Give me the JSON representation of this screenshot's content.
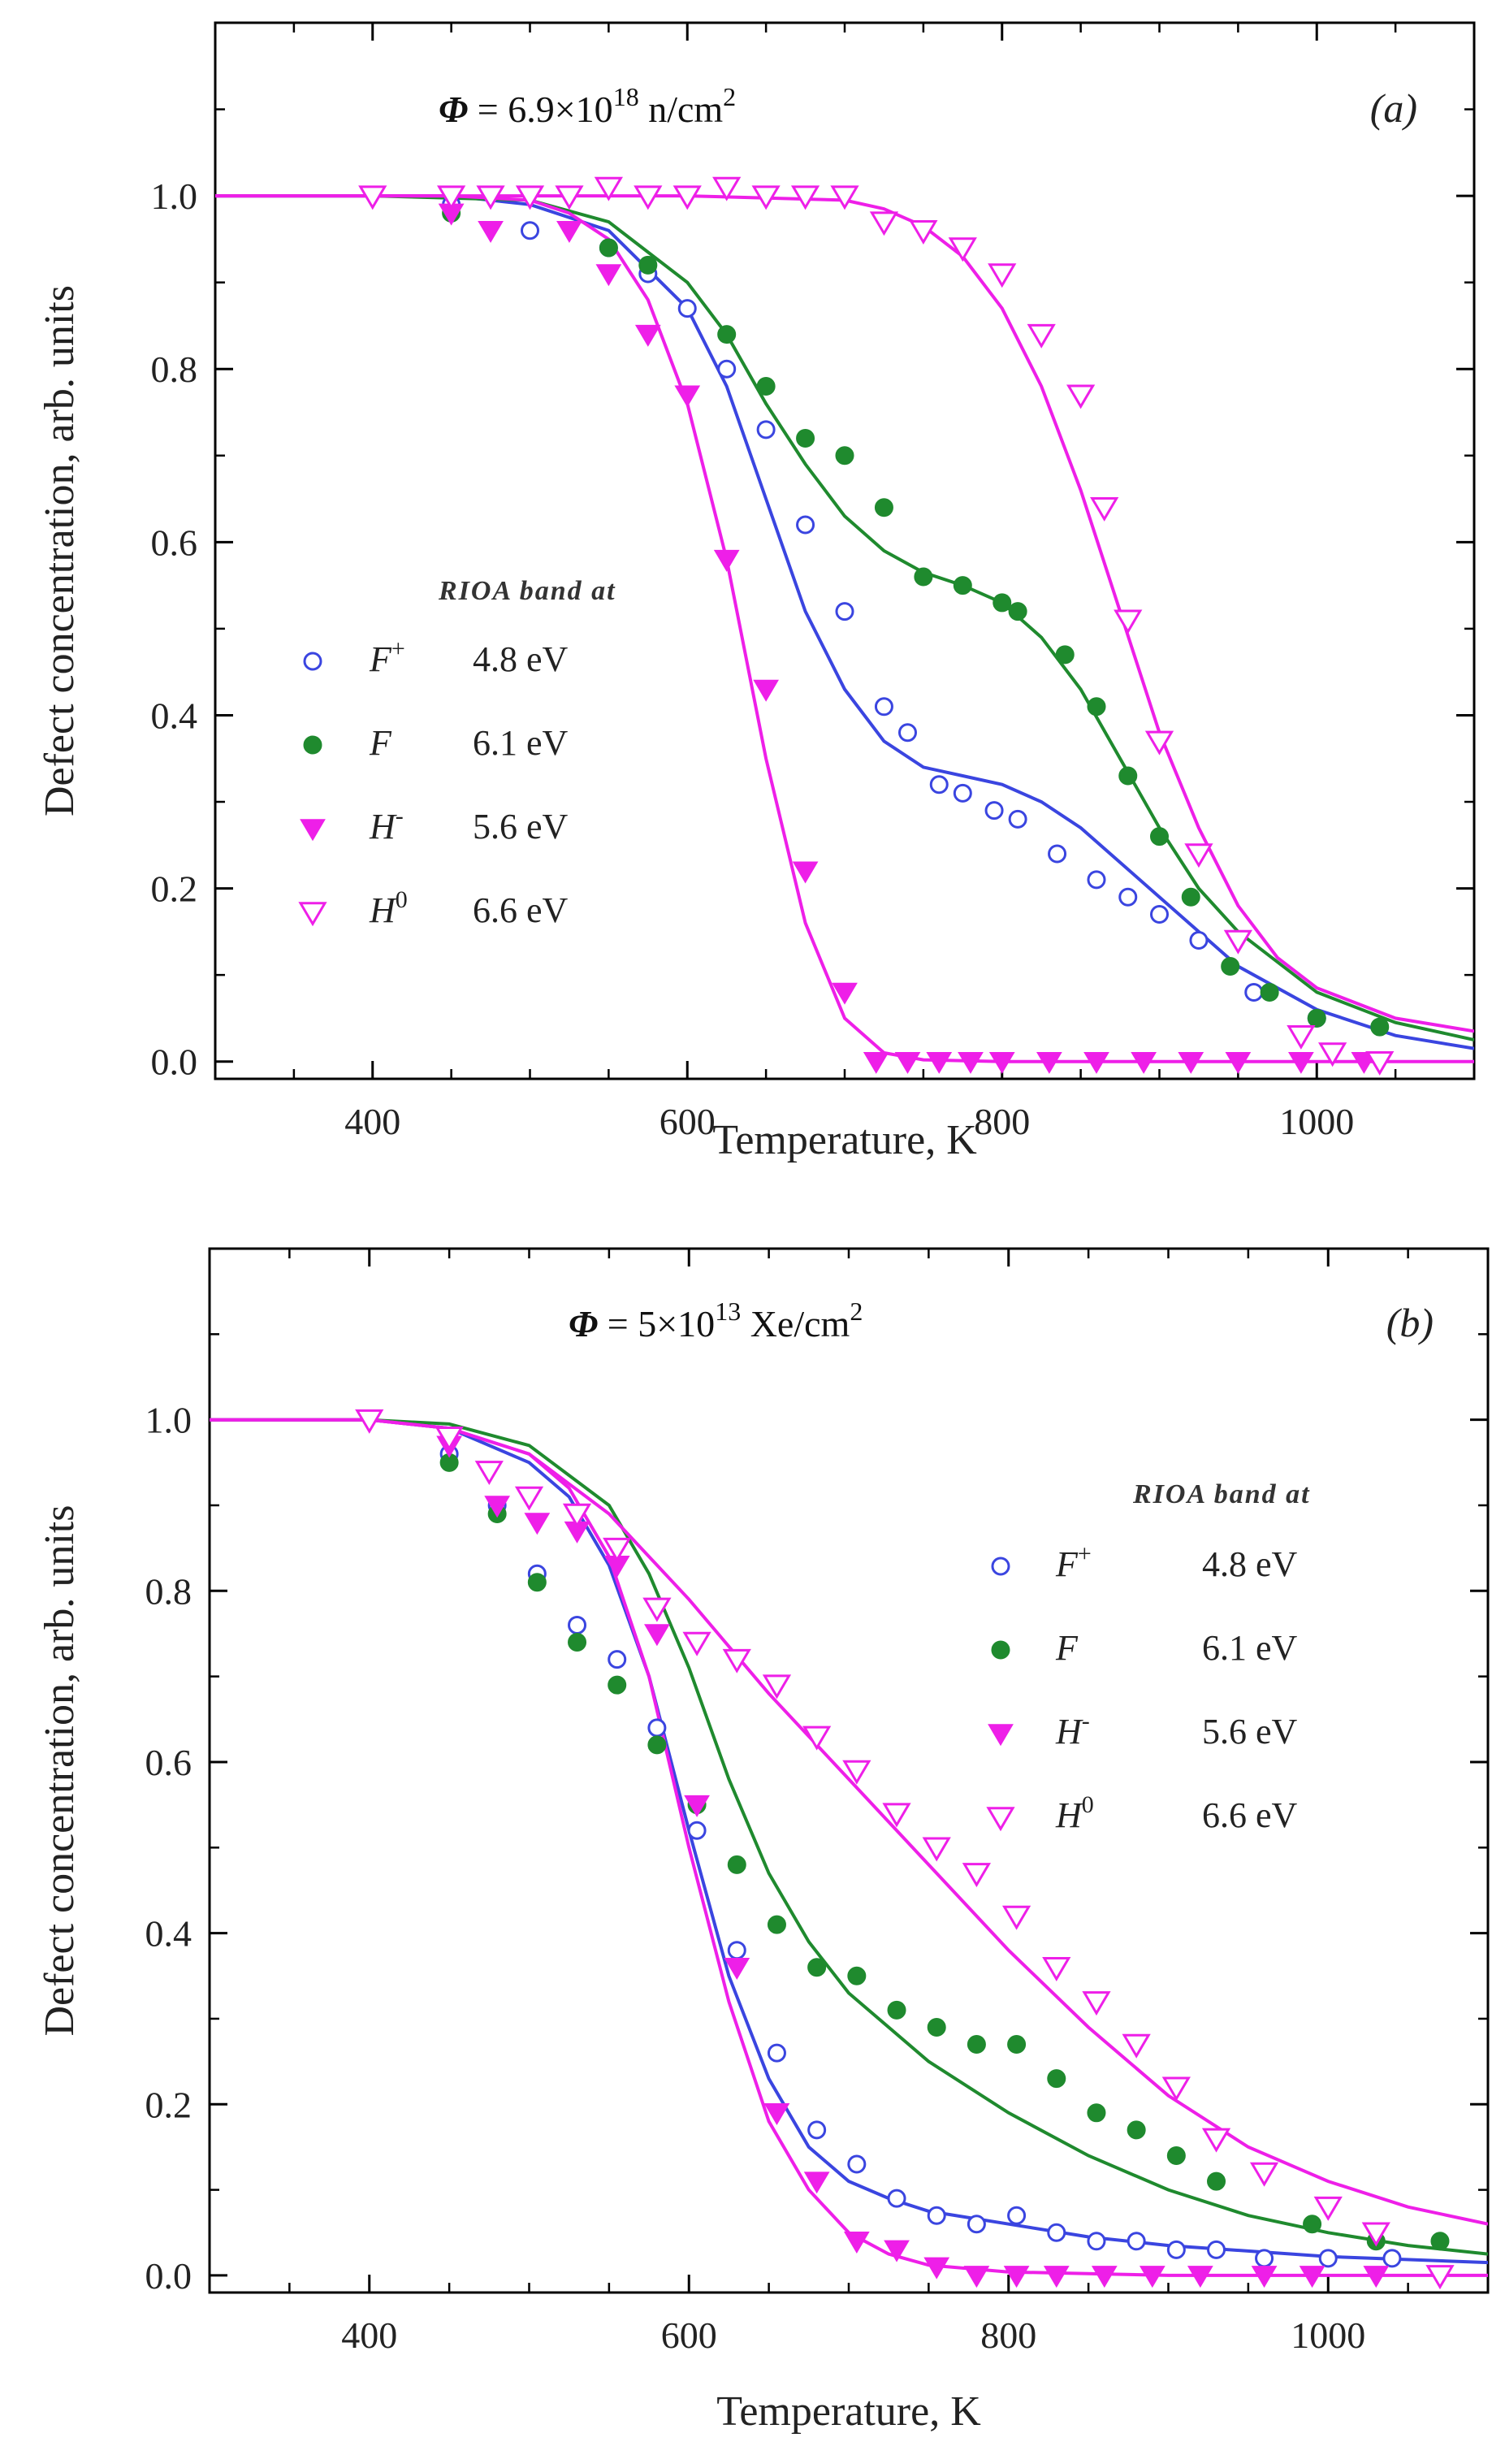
{
  "chart_data": [
    {
      "type": "scatter",
      "panel_label": "(a)",
      "annotation": {
        "symbol": "Φ",
        "text": " = 6.9×10",
        "exp": "18",
        "unit": " n/cm",
        "unit_exp": "2"
      },
      "xlabel": "Temperature, K",
      "ylabel": "Defect concentration, arb. units",
      "xlim": [
        300,
        1100
      ],
      "ylim": [
        -0.02,
        1.2
      ],
      "xticks": [
        400,
        600,
        800,
        1000
      ],
      "xtick_labels": [
        "400",
        "600",
        "800",
        "1000"
      ],
      "yticks": [
        0.0,
        0.2,
        0.4,
        0.6,
        0.8,
        1.0
      ],
      "ytick_labels": [
        "0.0",
        "0.2",
        "0.4",
        "0.6",
        "0.8",
        "1.0"
      ],
      "legend_title": "RIOA band at",
      "series": [
        {
          "name": "F+",
          "sym": "F",
          "sup": "+",
          "energy": "4.8 eV",
          "color": "#3a45e0",
          "marker": "open-circle",
          "x": [
            450,
            500,
            550,
            575,
            600,
            625,
            650,
            675,
            700,
            725,
            740,
            760,
            775,
            795,
            810,
            835,
            860,
            880,
            900,
            925,
            960,
            1000
          ],
          "y": [
            0.99,
            0.96,
            0.94,
            0.91,
            0.87,
            0.8,
            0.73,
            0.62,
            0.52,
            0.41,
            0.38,
            0.32,
            0.31,
            0.29,
            0.28,
            0.24,
            0.21,
            0.19,
            0.17,
            0.14,
            0.08,
            0.05
          ],
          "fit_x": [
            300,
            400,
            450,
            500,
            550,
            600,
            625,
            650,
            675,
            700,
            725,
            750,
            775,
            800,
            825,
            850,
            875,
            900,
            950,
            1000,
            1050,
            1100
          ],
          "fit_y": [
            1.0,
            1.0,
            1.0,
            0.99,
            0.96,
            0.87,
            0.78,
            0.65,
            0.52,
            0.43,
            0.37,
            0.34,
            0.33,
            0.32,
            0.3,
            0.27,
            0.23,
            0.19,
            0.11,
            0.06,
            0.03,
            0.015
          ]
        },
        {
          "name": "F",
          "sym": "F",
          "sup": "",
          "energy": "6.1 eV",
          "color": "#1f8a2e",
          "marker": "filled-circle",
          "x": [
            450,
            550,
            575,
            625,
            650,
            675,
            700,
            725,
            750,
            775,
            800,
            810,
            840,
            860,
            880,
            900,
            920,
            945,
            970,
            1000,
            1040
          ],
          "y": [
            0.98,
            0.94,
            0.92,
            0.84,
            0.78,
            0.72,
            0.7,
            0.64,
            0.56,
            0.55,
            0.53,
            0.52,
            0.47,
            0.41,
            0.33,
            0.26,
            0.19,
            0.11,
            0.08,
            0.05,
            0.04
          ],
          "fit_x": [
            300,
            400,
            500,
            550,
            600,
            625,
            650,
            675,
            700,
            725,
            750,
            775,
            800,
            825,
            850,
            875,
            900,
            925,
            950,
            1000,
            1050,
            1100
          ],
          "fit_y": [
            1.0,
            1.0,
            0.995,
            0.97,
            0.9,
            0.84,
            0.76,
            0.69,
            0.63,
            0.59,
            0.565,
            0.55,
            0.53,
            0.49,
            0.43,
            0.35,
            0.27,
            0.2,
            0.15,
            0.08,
            0.045,
            0.025
          ]
        },
        {
          "name": "H-",
          "sym": "H",
          "sup": "-",
          "energy": "5.6 eV",
          "color": "#ee1fe8",
          "marker": "filled-down-triangle",
          "x": [
            450,
            475,
            525,
            550,
            575,
            600,
            625,
            650,
            675,
            700,
            720,
            740,
            760,
            780,
            800,
            830,
            860,
            890,
            920,
            950,
            990,
            1030
          ],
          "y": [
            0.98,
            0.96,
            0.96,
            0.91,
            0.84,
            0.77,
            0.58,
            0.43,
            0.22,
            0.08,
            0.0,
            0.0,
            0.0,
            0.0,
            0.0,
            0.0,
            0.0,
            0.0,
            0.0,
            0.0,
            0.0,
            0.0
          ],
          "fit_x": [
            300,
            400,
            450,
            500,
            525,
            550,
            575,
            600,
            625,
            650,
            675,
            700,
            725,
            750,
            800,
            900,
            1000,
            1100
          ],
          "fit_y": [
            1.0,
            1.0,
            1.0,
            0.995,
            0.98,
            0.95,
            0.88,
            0.76,
            0.58,
            0.35,
            0.16,
            0.05,
            0.01,
            0.002,
            0.0,
            0.0,
            0.0,
            0.0
          ]
        },
        {
          "name": "H0",
          "sym": "H",
          "sup": "0",
          "energy": "6.6 eV",
          "color": "#ee1fe8",
          "marker": "open-down-triangle",
          "x": [
            400,
            450,
            475,
            500,
            525,
            550,
            575,
            600,
            625,
            650,
            675,
            700,
            725,
            750,
            775,
            800,
            825,
            850,
            865,
            880,
            900,
            925,
            950,
            990,
            1010,
            1040
          ],
          "y": [
            1.0,
            1.0,
            1.0,
            1.0,
            1.0,
            1.01,
            1.0,
            1.0,
            1.01,
            1.0,
            1.0,
            1.0,
            0.97,
            0.96,
            0.94,
            0.91,
            0.84,
            0.77,
            0.64,
            0.51,
            0.37,
            0.24,
            0.14,
            0.03,
            0.01,
            0.0
          ],
          "fit_x": [
            300,
            500,
            600,
            700,
            725,
            750,
            775,
            800,
            825,
            850,
            875,
            900,
            925,
            950,
            975,
            1000,
            1050,
            1100
          ],
          "fit_y": [
            1.0,
            1.0,
            1.0,
            0.995,
            0.985,
            0.965,
            0.93,
            0.87,
            0.78,
            0.66,
            0.52,
            0.38,
            0.27,
            0.18,
            0.12,
            0.085,
            0.05,
            0.035
          ]
        }
      ]
    },
    {
      "type": "scatter",
      "panel_label": "(b)",
      "annotation": {
        "symbol": "Φ",
        "text": " = 5×10",
        "exp": "13",
        "unit": " Xe/cm",
        "unit_exp": "2"
      },
      "xlabel": "Temperature, K",
      "ylabel": "Defect concentration, arb. units",
      "xlim": [
        300,
        1100
      ],
      "ylim": [
        -0.02,
        1.2
      ],
      "xticks": [
        400,
        600,
        800,
        1000
      ],
      "xtick_labels": [
        "400",
        "600",
        "800",
        "1000"
      ],
      "yticks": [
        0.0,
        0.2,
        0.4,
        0.6,
        0.8,
        1.0
      ],
      "ytick_labels": [
        "0.0",
        "0.2",
        "0.4",
        "0.6",
        "0.8",
        "1.0"
      ],
      "legend_title": "RIOA band at",
      "series": [
        {
          "name": "F+",
          "sym": "F",
          "sup": "+",
          "energy": "4.8 eV",
          "color": "#3a45e0",
          "marker": "open-circle",
          "x": [
            450,
            480,
            505,
            530,
            555,
            580,
            605,
            630,
            655,
            680,
            705,
            730,
            755,
            780,
            805,
            830,
            855,
            880,
            905,
            930,
            960,
            1000,
            1040
          ],
          "y": [
            0.96,
            0.9,
            0.82,
            0.76,
            0.72,
            0.64,
            0.52,
            0.38,
            0.26,
            0.17,
            0.13,
            0.09,
            0.07,
            0.06,
            0.07,
            0.05,
            0.04,
            0.04,
            0.03,
            0.03,
            0.02,
            0.02,
            0.02
          ],
          "fit_x": [
            300,
            400,
            450,
            500,
            525,
            550,
            575,
            600,
            625,
            650,
            675,
            700,
            725,
            750,
            800,
            850,
            900,
            1000,
            1100
          ],
          "fit_y": [
            1.0,
            1.0,
            0.99,
            0.95,
            0.91,
            0.83,
            0.7,
            0.52,
            0.35,
            0.23,
            0.15,
            0.11,
            0.09,
            0.075,
            0.06,
            0.045,
            0.035,
            0.022,
            0.015
          ]
        },
        {
          "name": "F",
          "sym": "F",
          "sup": "",
          "energy": "6.1 eV",
          "color": "#1f8a2e",
          "marker": "filled-circle",
          "x": [
            450,
            480,
            505,
            530,
            555,
            580,
            605,
            630,
            655,
            680,
            705,
            730,
            755,
            780,
            805,
            830,
            855,
            880,
            905,
            930,
            990,
            1030,
            1070
          ],
          "y": [
            0.95,
            0.89,
            0.81,
            0.74,
            0.69,
            0.62,
            0.55,
            0.48,
            0.41,
            0.36,
            0.35,
            0.31,
            0.29,
            0.27,
            0.27,
            0.23,
            0.19,
            0.17,
            0.14,
            0.11,
            0.06,
            0.04,
            0.04
          ],
          "fit_x": [
            300,
            400,
            450,
            500,
            550,
            575,
            600,
            625,
            650,
            675,
            700,
            750,
            800,
            850,
            900,
            950,
            1000,
            1050,
            1100
          ],
          "fit_y": [
            1.0,
            1.0,
            0.995,
            0.97,
            0.9,
            0.82,
            0.71,
            0.58,
            0.47,
            0.39,
            0.33,
            0.25,
            0.19,
            0.14,
            0.1,
            0.07,
            0.05,
            0.035,
            0.025
          ]
        },
        {
          "name": "H-",
          "sym": "H",
          "sup": "-",
          "energy": "5.6 eV",
          "color": "#ee1fe8",
          "marker": "filled-down-triangle",
          "x": [
            450,
            480,
            505,
            530,
            555,
            580,
            605,
            630,
            655,
            680,
            705,
            730,
            755,
            780,
            805,
            830,
            860,
            890,
            920,
            960,
            990,
            1030,
            1070
          ],
          "y": [
            0.97,
            0.9,
            0.88,
            0.87,
            0.83,
            0.75,
            0.55,
            0.36,
            0.19,
            0.11,
            0.04,
            0.03,
            0.01,
            0.0,
            0.0,
            0.0,
            0.0,
            0.0,
            0.0,
            0.0,
            0.0,
            0.0,
            0.0
          ],
          "fit_x": [
            300,
            400,
            450,
            500,
            525,
            550,
            575,
            600,
            625,
            650,
            675,
            700,
            725,
            750,
            800,
            900,
            1000,
            1100
          ],
          "fit_y": [
            1.0,
            1.0,
            0.99,
            0.96,
            0.92,
            0.84,
            0.7,
            0.5,
            0.32,
            0.18,
            0.1,
            0.05,
            0.025,
            0.012,
            0.004,
            0.0,
            0.0,
            0.0
          ]
        },
        {
          "name": "H0",
          "sym": "H",
          "sup": "0",
          "energy": "6.6 eV",
          "color": "#ee1fe8",
          "marker": "open-down-triangle",
          "x": [
            400,
            450,
            475,
            500,
            530,
            555,
            580,
            605,
            630,
            655,
            680,
            705,
            730,
            755,
            780,
            805,
            830,
            855,
            880,
            905,
            930,
            960,
            1000,
            1030,
            1070
          ],
          "y": [
            1.0,
            0.98,
            0.94,
            0.91,
            0.89,
            0.85,
            0.78,
            0.74,
            0.72,
            0.69,
            0.63,
            0.59,
            0.54,
            0.5,
            0.47,
            0.42,
            0.36,
            0.32,
            0.27,
            0.22,
            0.16,
            0.12,
            0.08,
            0.05,
            0.0
          ],
          "fit_x": [
            300,
            400,
            450,
            500,
            550,
            600,
            650,
            700,
            750,
            800,
            850,
            900,
            950,
            1000,
            1050,
            1100
          ],
          "fit_y": [
            1.0,
            1.0,
            0.99,
            0.96,
            0.89,
            0.79,
            0.68,
            0.58,
            0.48,
            0.38,
            0.29,
            0.21,
            0.15,
            0.11,
            0.08,
            0.06
          ]
        }
      ]
    }
  ]
}
